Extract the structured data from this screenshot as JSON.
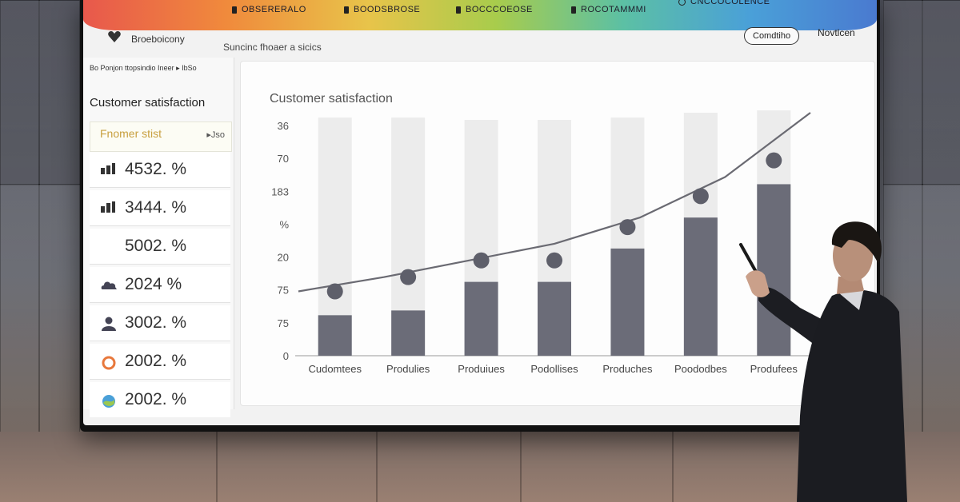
{
  "topbar": {
    "items": [
      {
        "icon": "doc-icon",
        "label": "OBSERERALO"
      },
      {
        "icon": "doc-icon",
        "label": "BOODSBROSE"
      },
      {
        "icon": "doc-icon",
        "label": "BOCCCOEOSE"
      },
      {
        "icon": "doc-icon",
        "label": "ROCOTAMMMI"
      },
      {
        "icon": "bulb-icon",
        "label": "CNCCOCOLENCE"
      }
    ]
  },
  "nav": {
    "brand": "Broeboicony",
    "subtitle": "Suncinc fhoaer a sicics",
    "button_label": "Comdtiho",
    "link_label": "Novtlcen"
  },
  "sidebar": {
    "top_text": "Bo Ponjon ttopsindio Ineer ▸ IbSo",
    "title": "Customer satisfaction",
    "header_left": "Fnomer stist",
    "header_right": "▸Jso",
    "rows": [
      {
        "icon": "bar-chart-icon",
        "value": "4532. %"
      },
      {
        "icon": "bar-chart-icon",
        "value": "3444. %"
      },
      {
        "icon": "none",
        "value": "5002. %"
      },
      {
        "icon": "cloud-icon",
        "value": "2024 %"
      },
      {
        "icon": "user-icon",
        "value": "3002. %"
      },
      {
        "icon": "ring-icon",
        "value": "2002. %"
      },
      {
        "icon": "globe-icon",
        "value": "2002. %"
      }
    ]
  },
  "colors": {
    "bar": "#6b6c78",
    "bar_bg": "#ececec",
    "line": "#6a6a72",
    "dot": "#5e5f6a"
  },
  "chart_data": {
    "type": "bar",
    "title": "Customer satisfaction",
    "xlabel": "",
    "ylabel": "",
    "y_tick_labels": [
      "0",
      "75",
      "75",
      "20",
      "%",
      "183",
      "70",
      "36"
    ],
    "categories": [
      "Cudomtees",
      "Produlies",
      "Produiues",
      "Podollises",
      "Produches",
      "Poododbes",
      "Produfees"
    ],
    "ylim": [
      0,
      100
    ],
    "values": [
      17,
      19,
      31,
      31,
      45,
      58,
      72
    ],
    "background_max": [
      100,
      100,
      99,
      99,
      100,
      102,
      103
    ],
    "series": [
      {
        "name": "bars",
        "values": [
          17,
          19,
          31,
          31,
          45,
          58,
          72
        ]
      },
      {
        "name": "dots",
        "values": [
          27,
          33,
          40,
          40,
          54,
          67,
          82
        ]
      }
    ],
    "trend_line": {
      "x_start": 0,
      "x_end": 7,
      "values": [
        27,
        33,
        40,
        47,
        58,
        75,
        102
      ]
    }
  }
}
